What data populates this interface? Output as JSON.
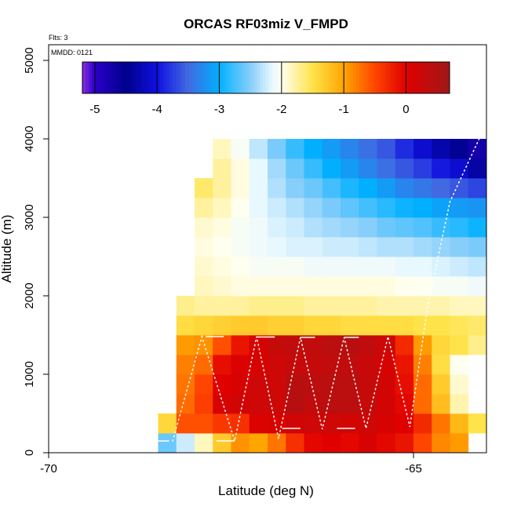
{
  "chart_data": {
    "type": "heatmap",
    "title": "ORCAS RF03miz V_FMPD",
    "xlabel": "Latitude (deg N)",
    "ylabel": "Altitude (m)",
    "annotations": {
      "flights": "Flts: 3",
      "date": "MMDD: 0121"
    },
    "xlim": [
      -70,
      -64
    ],
    "ylim": [
      0,
      5200
    ],
    "x_ticks": [
      -70,
      -65
    ],
    "y_ticks": [
      0,
      1000,
      2000,
      3000,
      4000,
      5000
    ],
    "colorbar": {
      "min": -5.2,
      "max": 0.7,
      "ticks": [
        -5,
        -4,
        -3,
        -2,
        -1,
        0
      ],
      "stops": [
        {
          "v": -5.2,
          "c": "#8a2be2"
        },
        {
          "v": -5.0,
          "c": "#2a00c8"
        },
        {
          "v": -4.5,
          "c": "#00008b"
        },
        {
          "v": -4.0,
          "c": "#1010e0"
        },
        {
          "v": -3.5,
          "c": "#4169e1"
        },
        {
          "v": -3.0,
          "c": "#00b0ff"
        },
        {
          "v": -2.5,
          "c": "#87cefa"
        },
        {
          "v": -2.15,
          "c": "#e8f8ff"
        },
        {
          "v": -2.0,
          "c": "#fffff0"
        },
        {
          "v": -1.5,
          "c": "#ffe34a"
        },
        {
          "v": -1.0,
          "c": "#ffa500"
        },
        {
          "v": -0.5,
          "c": "#ff4500"
        },
        {
          "v": 0.0,
          "c": "#e00000"
        },
        {
          "v": 0.7,
          "c": "#a01818"
        }
      ]
    },
    "lat_bin_width": 0.25,
    "alt_bin_height": 250,
    "rows": [
      {
        "alt": 0,
        "lat0": -68.5,
        "values": [
          -2.6,
          -2.25,
          -1.85,
          -1.3,
          -0.9,
          -1.0,
          -0.75,
          -0.35,
          -0.05,
          0.0,
          -0.05,
          0.1,
          -0.05,
          -0.15,
          -0.5,
          -0.85,
          -0.95
        ]
      },
      {
        "alt": 250,
        "lat0": -68.5,
        "values": [
          -1.4,
          -0.55,
          -0.55,
          -0.4,
          -0.35,
          0.05,
          0.1,
          0.15,
          0.2,
          0.2,
          0.15,
          0.2,
          0.1,
          0.0,
          -0.3,
          -0.75,
          -1.15,
          -1.5
        ]
      },
      {
        "alt": 500,
        "lat0": -68.25,
        "values": [
          -0.7,
          -0.45,
          0.1,
          0.15,
          0.2,
          0.2,
          0.45,
          0.35,
          0.4,
          0.4,
          0.3,
          0.15,
          -0.05,
          -0.7,
          -1.2,
          -1.8
        ]
      },
      {
        "alt": 750,
        "lat0": -68.25,
        "values": [
          -0.75,
          -0.5,
          0.0,
          0.1,
          0.2,
          0.2,
          0.45,
          0.4,
          0.4,
          0.4,
          0.3,
          0.15,
          -0.1,
          -0.7,
          -1.3,
          -1.9
        ]
      },
      {
        "alt": 1000,
        "lat0": -68.25,
        "values": [
          -0.8,
          -0.7,
          -0.1,
          0.05,
          0.1,
          0.2,
          0.3,
          0.3,
          0.35,
          0.35,
          0.25,
          0.1,
          -0.15,
          -0.8,
          -1.45,
          -2.0
        ]
      },
      {
        "alt": 1250,
        "lat0": -68.25,
        "values": [
          -0.95,
          -0.9,
          -0.55,
          -0.15,
          0.1,
          0.3,
          0.35,
          0.35,
          0.4,
          0.45,
          0.35,
          0.2,
          -0.3,
          -0.95,
          -1.4,
          -1.5,
          -1.7
        ]
      },
      {
        "alt": 1500,
        "lat0": -68.25,
        "values": [
          -1.45,
          -1.4,
          -1.35,
          -1.3,
          -1.3,
          -1.35,
          -1.35,
          -1.4,
          -1.4,
          -1.45,
          -1.45,
          -1.45,
          -1.45,
          -1.5,
          -1.5,
          -1.55,
          -1.6
        ]
      },
      {
        "alt": 1750,
        "lat0": -68.25,
        "values": [
          -1.7,
          -1.75,
          -1.75,
          -1.75,
          -1.7,
          -1.7,
          -1.7,
          -1.75,
          -1.75,
          -1.75,
          -1.75,
          -1.8,
          -1.8,
          -1.8,
          -1.8,
          -1.85,
          -1.85
        ]
      },
      {
        "alt": 2000,
        "lat0": -68.0,
        "values": [
          -1.85,
          -1.9,
          -1.95,
          -1.95,
          -1.95,
          -1.95,
          -1.95,
          -1.95,
          -1.95,
          -1.95,
          -1.95,
          -2.0,
          -2.0,
          -2.05,
          -2.05,
          -2.1
        ]
      },
      {
        "alt": 2250,
        "lat0": -68.0,
        "values": [
          -1.9,
          -1.95,
          -2.0,
          -2.05,
          -2.05,
          -2.05,
          -2.1,
          -2.1,
          -2.1,
          -2.1,
          -2.1,
          -2.15,
          -2.15,
          -2.2,
          -2.25,
          -2.3
        ]
      },
      {
        "alt": 2500,
        "lat0": -68.0,
        "values": [
          -1.95,
          -2.0,
          -2.05,
          -2.1,
          -2.15,
          -2.2,
          -2.2,
          -2.25,
          -2.25,
          -2.3,
          -2.35,
          -2.35,
          -2.4,
          -2.45,
          -2.5,
          -2.55
        ]
      },
      {
        "alt": 2750,
        "lat0": -68.0,
        "values": [
          -1.9,
          -1.95,
          -2.05,
          -2.1,
          -2.2,
          -2.25,
          -2.35,
          -2.4,
          -2.45,
          -2.5,
          -2.6,
          -2.65,
          -2.7,
          -2.8,
          -2.85,
          -2.95,
          -3.0
        ]
      },
      {
        "alt": 3000,
        "lat0": -68.0,
        "values": [
          -1.75,
          -1.85,
          -2.0,
          -2.15,
          -2.25,
          -2.35,
          -2.45,
          -2.55,
          -2.65,
          -2.75,
          -2.85,
          -2.95,
          -3.0,
          -3.1,
          -3.15,
          -3.2,
          -3.25
        ]
      },
      {
        "alt": 3250,
        "lat0": -68.0,
        "values": [
          -1.6,
          -1.75,
          -1.95,
          -2.15,
          -2.35,
          -2.5,
          -2.6,
          -2.75,
          -2.9,
          -3.0,
          -3.15,
          -3.3,
          -3.4,
          -3.5,
          -3.6,
          -3.7,
          -3.8
        ]
      },
      {
        "alt": 3500,
        "lat0": -67.75,
        "values": [
          -1.75,
          -1.95,
          -2.15,
          -2.4,
          -2.6,
          -2.8,
          -3.0,
          -3.15,
          -3.3,
          -3.45,
          -3.6,
          -3.75,
          -3.95,
          -4.1,
          -4.35,
          -4.5
        ]
      },
      {
        "alt": 3750,
        "lat0": -67.75,
        "values": [
          -1.85,
          -2.05,
          -2.3,
          -2.55,
          -2.8,
          -3.0,
          -3.15,
          -3.3,
          -3.45,
          -3.6,
          -3.85,
          -4.1,
          -4.3,
          -4.45,
          -4.75,
          -5.05
        ]
      }
    ],
    "flight_track_note": "white dotted flight track overlay"
  }
}
